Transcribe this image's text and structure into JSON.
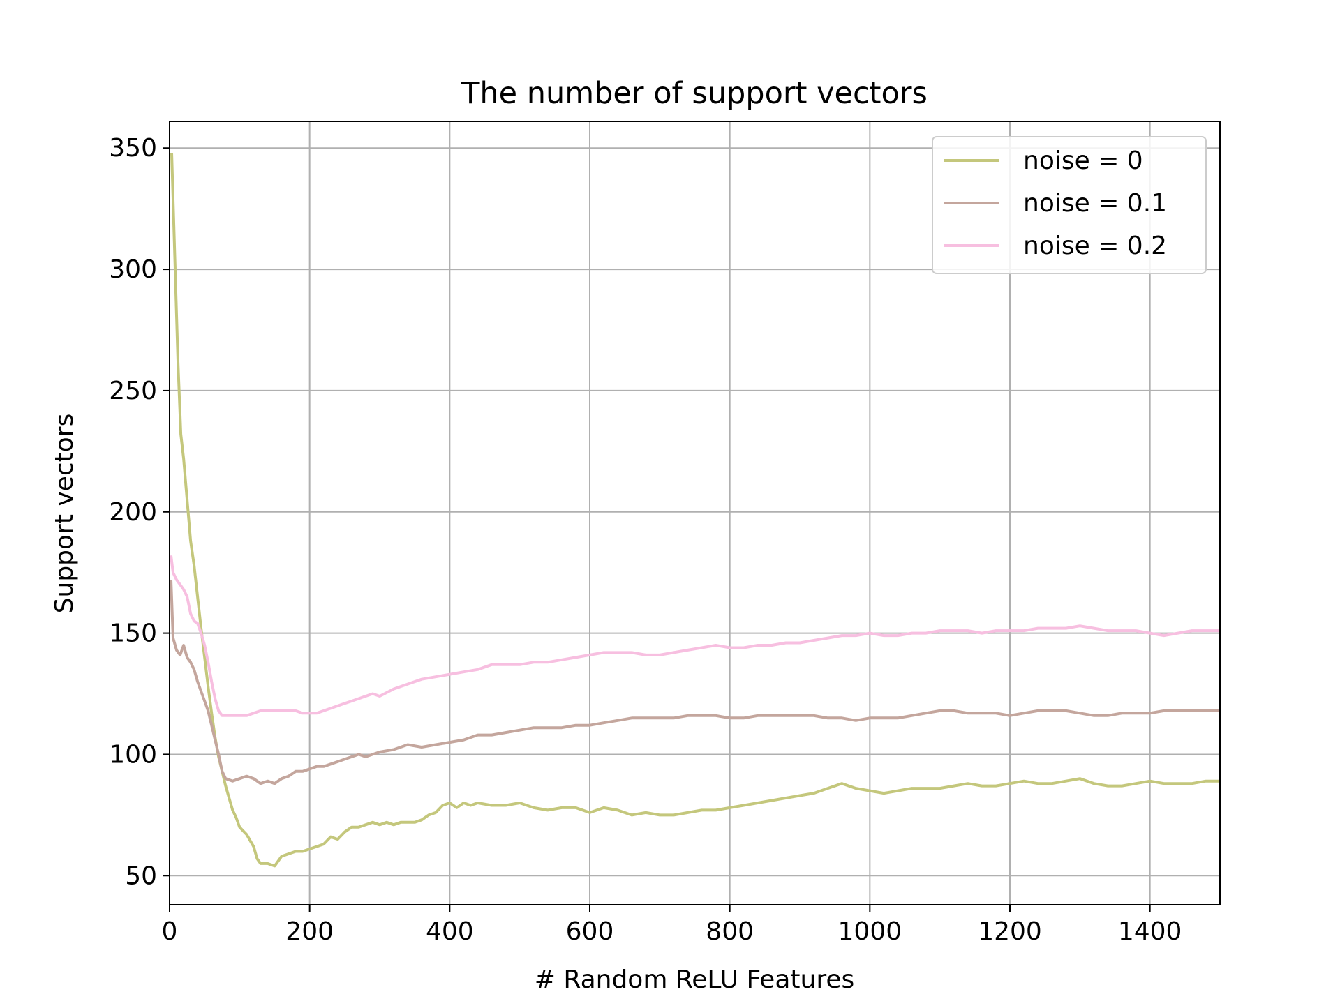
{
  "chart_data": {
    "type": "line",
    "title": "The number of support vectors",
    "xlabel": "# Random ReLU Features",
    "ylabel": "Support vectors",
    "xlim": [
      0,
      1500
    ],
    "ylim": [
      38,
      361
    ],
    "xticks": [
      0,
      200,
      400,
      600,
      800,
      1000,
      1200,
      1400
    ],
    "yticks": [
      50,
      100,
      150,
      200,
      250,
      300,
      350
    ],
    "grid": true,
    "legend_position": "top-right",
    "series": [
      {
        "name": "noise = 0",
        "color": "#c4c77c",
        "points": [
          [
            3,
            348
          ],
          [
            8,
            300
          ],
          [
            12,
            262
          ],
          [
            16,
            232
          ],
          [
            20,
            222
          ],
          [
            25,
            205
          ],
          [
            30,
            188
          ],
          [
            35,
            178
          ],
          [
            40,
            165
          ],
          [
            45,
            152
          ],
          [
            50,
            140
          ],
          [
            55,
            128
          ],
          [
            60,
            117
          ],
          [
            65,
            107
          ],
          [
            70,
            99
          ],
          [
            75,
            93
          ],
          [
            80,
            87
          ],
          [
            85,
            82
          ],
          [
            90,
            77
          ],
          [
            95,
            74
          ],
          [
            100,
            70
          ],
          [
            110,
            67
          ],
          [
            120,
            62
          ],
          [
            125,
            57
          ],
          [
            130,
            55
          ],
          [
            140,
            55
          ],
          [
            150,
            54
          ],
          [
            160,
            58
          ],
          [
            170,
            59
          ],
          [
            180,
            60
          ],
          [
            190,
            60
          ],
          [
            200,
            61
          ],
          [
            210,
            62
          ],
          [
            220,
            63
          ],
          [
            230,
            66
          ],
          [
            240,
            65
          ],
          [
            250,
            68
          ],
          [
            260,
            70
          ],
          [
            270,
            70
          ],
          [
            280,
            71
          ],
          [
            290,
            72
          ],
          [
            300,
            71
          ],
          [
            310,
            72
          ],
          [
            320,
            71
          ],
          [
            330,
            72
          ],
          [
            340,
            72
          ],
          [
            350,
            72
          ],
          [
            360,
            73
          ],
          [
            370,
            75
          ],
          [
            380,
            76
          ],
          [
            390,
            79
          ],
          [
            400,
            80
          ],
          [
            410,
            78
          ],
          [
            420,
            80
          ],
          [
            430,
            79
          ],
          [
            440,
            80
          ],
          [
            460,
            79
          ],
          [
            480,
            79
          ],
          [
            500,
            80
          ],
          [
            520,
            78
          ],
          [
            540,
            77
          ],
          [
            560,
            78
          ],
          [
            580,
            78
          ],
          [
            600,
            76
          ],
          [
            620,
            78
          ],
          [
            640,
            77
          ],
          [
            660,
            75
          ],
          [
            680,
            76
          ],
          [
            700,
            75
          ],
          [
            720,
            75
          ],
          [
            740,
            76
          ],
          [
            760,
            77
          ],
          [
            780,
            77
          ],
          [
            800,
            78
          ],
          [
            820,
            79
          ],
          [
            840,
            80
          ],
          [
            860,
            81
          ],
          [
            880,
            82
          ],
          [
            900,
            83
          ],
          [
            920,
            84
          ],
          [
            940,
            86
          ],
          [
            960,
            88
          ],
          [
            980,
            86
          ],
          [
            1000,
            85
          ],
          [
            1020,
            84
          ],
          [
            1040,
            85
          ],
          [
            1060,
            86
          ],
          [
            1080,
            86
          ],
          [
            1100,
            86
          ],
          [
            1120,
            87
          ],
          [
            1140,
            88
          ],
          [
            1160,
            87
          ],
          [
            1180,
            87
          ],
          [
            1200,
            88
          ],
          [
            1220,
            89
          ],
          [
            1240,
            88
          ],
          [
            1260,
            88
          ],
          [
            1280,
            89
          ],
          [
            1300,
            90
          ],
          [
            1320,
            88
          ],
          [
            1340,
            87
          ],
          [
            1360,
            87
          ],
          [
            1380,
            88
          ],
          [
            1400,
            89
          ],
          [
            1420,
            88
          ],
          [
            1440,
            88
          ],
          [
            1460,
            88
          ],
          [
            1480,
            89
          ],
          [
            1500,
            89
          ]
        ]
      },
      {
        "name": "noise = 0.1",
        "color": "#c4a69d",
        "points": [
          [
            2,
            172
          ],
          [
            5,
            148
          ],
          [
            10,
            143
          ],
          [
            15,
            141
          ],
          [
            20,
            145
          ],
          [
            25,
            140
          ],
          [
            30,
            138
          ],
          [
            35,
            135
          ],
          [
            40,
            130
          ],
          [
            45,
            126
          ],
          [
            50,
            122
          ],
          [
            55,
            118
          ],
          [
            60,
            112
          ],
          [
            65,
            106
          ],
          [
            70,
            100
          ],
          [
            75,
            93
          ],
          [
            80,
            90
          ],
          [
            90,
            89
          ],
          [
            100,
            90
          ],
          [
            110,
            91
          ],
          [
            120,
            90
          ],
          [
            130,
            88
          ],
          [
            140,
            89
          ],
          [
            150,
            88
          ],
          [
            160,
            90
          ],
          [
            170,
            91
          ],
          [
            180,
            93
          ],
          [
            190,
            93
          ],
          [
            200,
            94
          ],
          [
            210,
            95
          ],
          [
            220,
            95
          ],
          [
            230,
            96
          ],
          [
            240,
            97
          ],
          [
            250,
            98
          ],
          [
            260,
            99
          ],
          [
            270,
            100
          ],
          [
            280,
            99
          ],
          [
            290,
            100
          ],
          [
            300,
            101
          ],
          [
            320,
            102
          ],
          [
            340,
            104
          ],
          [
            360,
            103
          ],
          [
            380,
            104
          ],
          [
            400,
            105
          ],
          [
            420,
            106
          ],
          [
            440,
            108
          ],
          [
            460,
            108
          ],
          [
            480,
            109
          ],
          [
            500,
            110
          ],
          [
            520,
            111
          ],
          [
            540,
            111
          ],
          [
            560,
            111
          ],
          [
            580,
            112
          ],
          [
            600,
            112
          ],
          [
            620,
            113
          ],
          [
            640,
            114
          ],
          [
            660,
            115
          ],
          [
            680,
            115
          ],
          [
            700,
            115
          ],
          [
            720,
            115
          ],
          [
            740,
            116
          ],
          [
            760,
            116
          ],
          [
            780,
            116
          ],
          [
            800,
            115
          ],
          [
            820,
            115
          ],
          [
            840,
            116
          ],
          [
            860,
            116
          ],
          [
            880,
            116
          ],
          [
            900,
            116
          ],
          [
            920,
            116
          ],
          [
            940,
            115
          ],
          [
            960,
            115
          ],
          [
            980,
            114
          ],
          [
            1000,
            115
          ],
          [
            1020,
            115
          ],
          [
            1040,
            115
          ],
          [
            1060,
            116
          ],
          [
            1080,
            117
          ],
          [
            1100,
            118
          ],
          [
            1120,
            118
          ],
          [
            1140,
            117
          ],
          [
            1160,
            117
          ],
          [
            1180,
            117
          ],
          [
            1200,
            116
          ],
          [
            1220,
            117
          ],
          [
            1240,
            118
          ],
          [
            1260,
            118
          ],
          [
            1280,
            118
          ],
          [
            1300,
            117
          ],
          [
            1320,
            116
          ],
          [
            1340,
            116
          ],
          [
            1360,
            117
          ],
          [
            1380,
            117
          ],
          [
            1400,
            117
          ],
          [
            1420,
            118
          ],
          [
            1440,
            118
          ],
          [
            1460,
            118
          ],
          [
            1480,
            118
          ],
          [
            1500,
            118
          ]
        ]
      },
      {
        "name": "noise = 0.2",
        "color": "#f7bfe0",
        "points": [
          [
            2,
            182
          ],
          [
            5,
            175
          ],
          [
            10,
            172
          ],
          [
            15,
            170
          ],
          [
            20,
            168
          ],
          [
            25,
            165
          ],
          [
            30,
            158
          ],
          [
            35,
            155
          ],
          [
            40,
            154
          ],
          [
            45,
            150
          ],
          [
            50,
            145
          ],
          [
            55,
            138
          ],
          [
            60,
            130
          ],
          [
            65,
            123
          ],
          [
            70,
            118
          ],
          [
            75,
            116
          ],
          [
            80,
            116
          ],
          [
            90,
            116
          ],
          [
            100,
            116
          ],
          [
            110,
            116
          ],
          [
            120,
            117
          ],
          [
            130,
            118
          ],
          [
            140,
            118
          ],
          [
            150,
            118
          ],
          [
            160,
            118
          ],
          [
            170,
            118
          ],
          [
            180,
            118
          ],
          [
            190,
            117
          ],
          [
            200,
            117
          ],
          [
            210,
            117
          ],
          [
            220,
            118
          ],
          [
            230,
            119
          ],
          [
            240,
            120
          ],
          [
            250,
            121
          ],
          [
            260,
            122
          ],
          [
            270,
            123
          ],
          [
            280,
            124
          ],
          [
            290,
            125
          ],
          [
            300,
            124
          ],
          [
            320,
            127
          ],
          [
            340,
            129
          ],
          [
            360,
            131
          ],
          [
            380,
            132
          ],
          [
            400,
            133
          ],
          [
            420,
            134
          ],
          [
            440,
            135
          ],
          [
            460,
            137
          ],
          [
            480,
            137
          ],
          [
            500,
            137
          ],
          [
            520,
            138
          ],
          [
            540,
            138
          ],
          [
            560,
            139
          ],
          [
            580,
            140
          ],
          [
            600,
            141
          ],
          [
            620,
            142
          ],
          [
            640,
            142
          ],
          [
            660,
            142
          ],
          [
            680,
            141
          ],
          [
            700,
            141
          ],
          [
            720,
            142
          ],
          [
            740,
            143
          ],
          [
            760,
            144
          ],
          [
            780,
            145
          ],
          [
            800,
            144
          ],
          [
            820,
            144
          ],
          [
            840,
            145
          ],
          [
            860,
            145
          ],
          [
            880,
            146
          ],
          [
            900,
            146
          ],
          [
            920,
            147
          ],
          [
            940,
            148
          ],
          [
            960,
            149
          ],
          [
            980,
            149
          ],
          [
            1000,
            150
          ],
          [
            1020,
            149
          ],
          [
            1040,
            149
          ],
          [
            1060,
            150
          ],
          [
            1080,
            150
          ],
          [
            1100,
            151
          ],
          [
            1120,
            151
          ],
          [
            1140,
            151
          ],
          [
            1160,
            150
          ],
          [
            1180,
            151
          ],
          [
            1200,
            151
          ],
          [
            1220,
            151
          ],
          [
            1240,
            152
          ],
          [
            1260,
            152
          ],
          [
            1280,
            152
          ],
          [
            1300,
            153
          ],
          [
            1320,
            152
          ],
          [
            1340,
            151
          ],
          [
            1360,
            151
          ],
          [
            1380,
            151
          ],
          [
            1400,
            150
          ],
          [
            1420,
            149
          ],
          [
            1440,
            150
          ],
          [
            1460,
            151
          ],
          [
            1480,
            151
          ],
          [
            1500,
            151
          ]
        ]
      }
    ]
  }
}
